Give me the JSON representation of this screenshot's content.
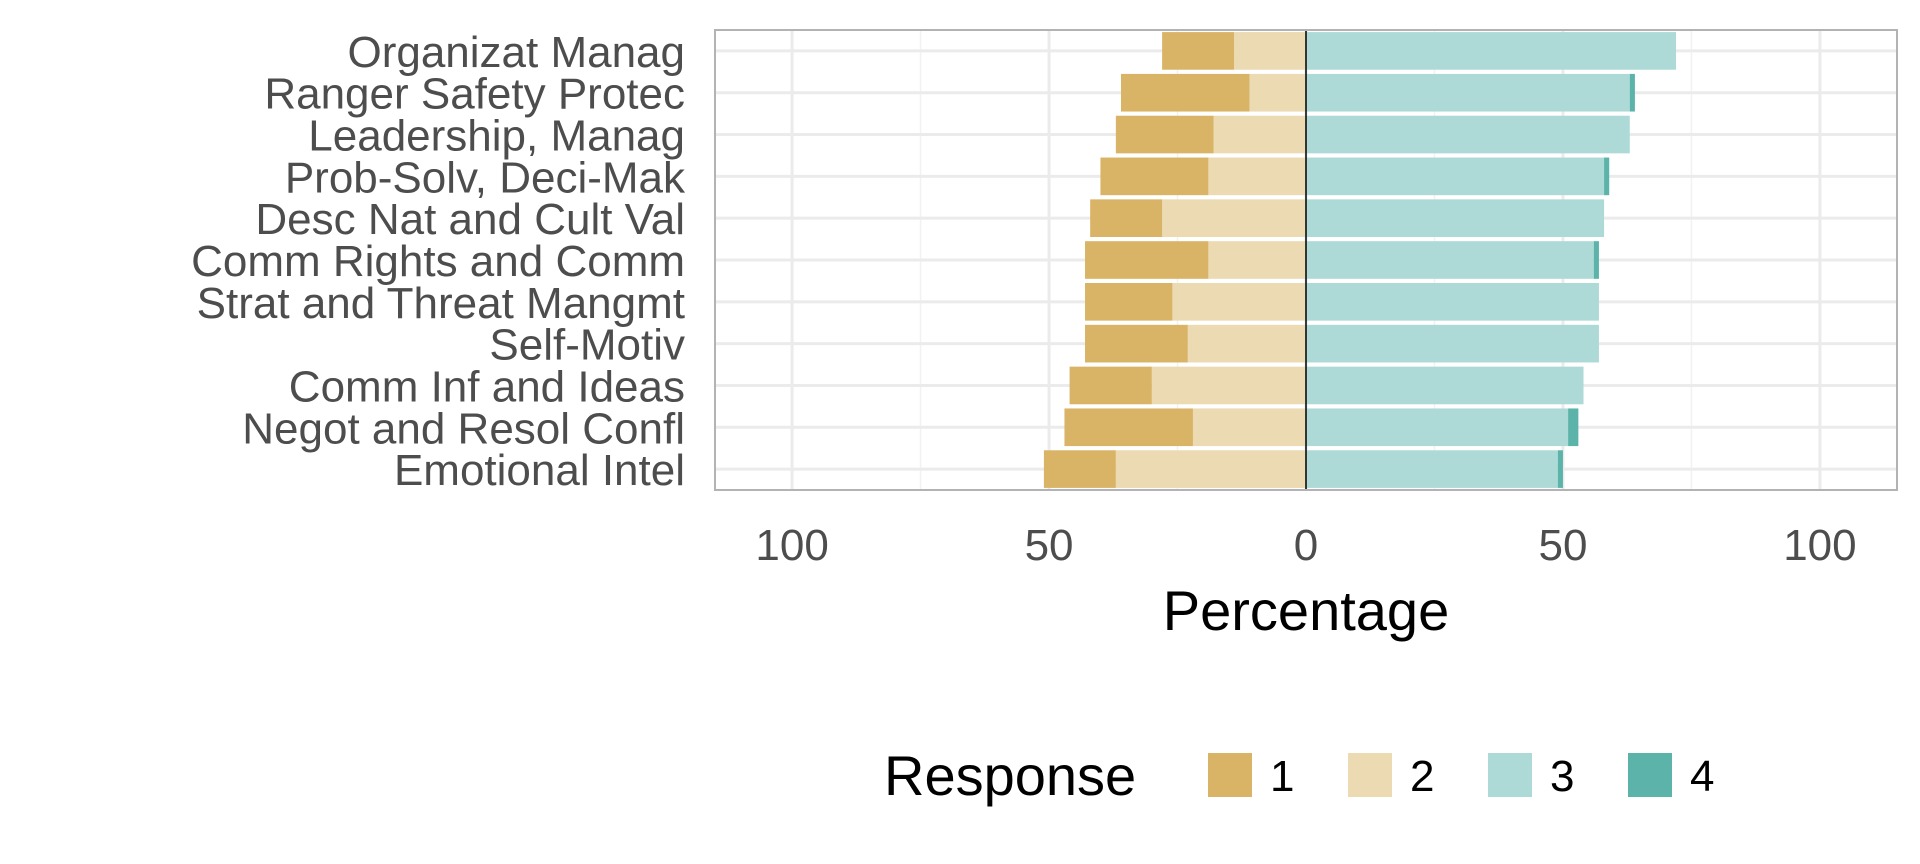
{
  "chart_data": {
    "type": "bar",
    "orientation": "horizontal",
    "diverging": true,
    "categories": [
      "Organizat Manag",
      "Ranger Safety Protec",
      "Leadership, Manag",
      "Prob-Solv, Deci-Mak",
      "Desc Nat and Cult Val",
      "Comm Rights and Comm",
      "Strat and Threat Mangmt",
      "Self-Motiv",
      "Comm Inf and Ideas",
      "Negot and Resol Confl",
      "Emotional Intel"
    ],
    "series": [
      {
        "name": "1",
        "color": "#DAB466",
        "side": "negative",
        "values": [
          14,
          25,
          19,
          21,
          14,
          24,
          17,
          20,
          16,
          25,
          14
        ]
      },
      {
        "name": "2",
        "color": "#EBDAB2",
        "side": "negative",
        "values": [
          14,
          11,
          18,
          19,
          28,
          19,
          26,
          23,
          30,
          22,
          37
        ]
      },
      {
        "name": "3",
        "color": "#ADDAD6",
        "side": "positive",
        "values": [
          72,
          63,
          63,
          58,
          58,
          56,
          57,
          57,
          54,
          51,
          49
        ]
      },
      {
        "name": "4",
        "color": "#5CB3A9",
        "side": "positive",
        "values": [
          0,
          1,
          0,
          1,
          0,
          1,
          0,
          0,
          0,
          2,
          1
        ]
      }
    ],
    "xlabel": "Percentage",
    "ylabel": "",
    "xlim": [
      -115,
      115
    ],
    "x_ticks": [
      -100,
      -50,
      0,
      50,
      100
    ],
    "x_tick_labels": [
      "100",
      "50",
      "0",
      "50",
      "100"
    ],
    "grid": true,
    "legend": {
      "title": "Response",
      "placement": "bottom",
      "entries": [
        "1",
        "2",
        "3",
        "4"
      ]
    }
  }
}
